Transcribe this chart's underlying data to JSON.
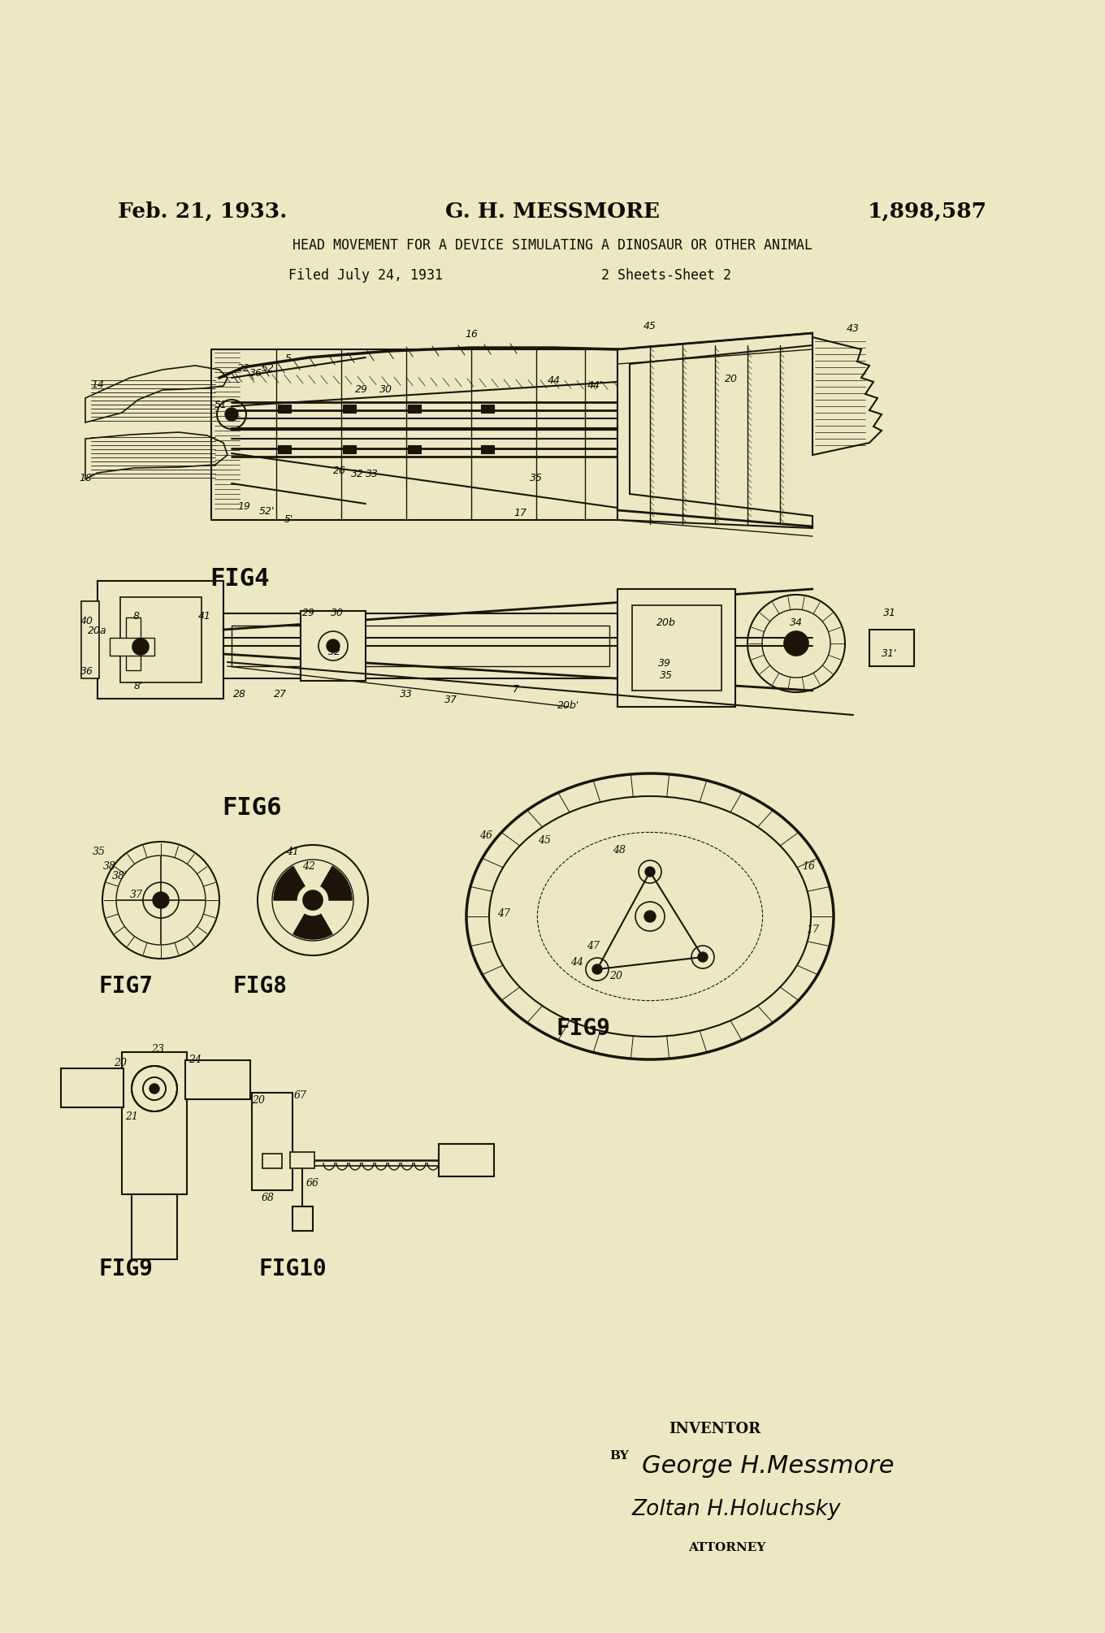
{
  "bg_color": "#EDE8C4",
  "line_color": "#1a1508",
  "text_color": "#0d0d05",
  "title_line1": "Feb. 21, 1933.",
  "title_center": "G. H. MESSMORE",
  "title_right": "1,898,587",
  "subtitle": "HEAD MOVEMENT FOR A DEVICE SIMULATING A DINOSAUR OR OTHER ANIMAL",
  "filed": "Filed July 24, 1931",
  "sheets": "2 Sheets-Sheet 2",
  "fig_width": 13.6,
  "fig_height": 20.1,
  "fig4_label": "FIG4",
  "fig6_label": "FIG6",
  "fig7_label": "FIG7",
  "fig8_label": "FIG8",
  "fig9_label": "FIG9",
  "fig9b_label": "FIG9",
  "fig10_label": "FIG10"
}
